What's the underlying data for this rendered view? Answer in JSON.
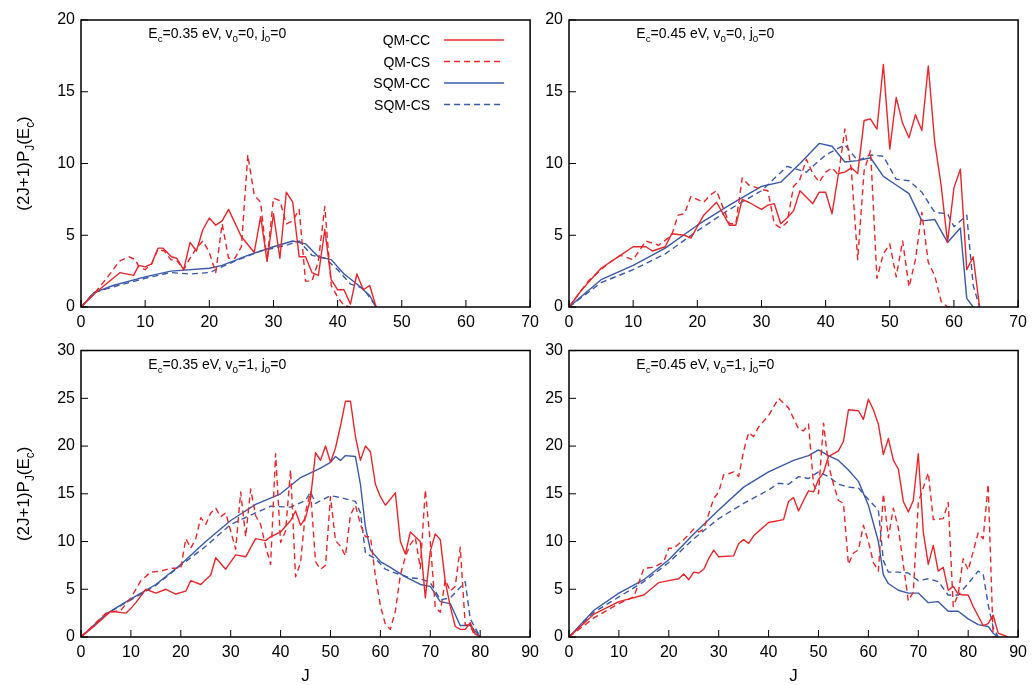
{
  "chart_data": [
    {
      "type": "line",
      "annotations": [
        "E$_{c}$=0.35 eV, v$_{0}$=0, j$_{0}$=0"
      ],
      "ylabel": "(2J+1)P$_{J}$(E$_{c}$)",
      "xlim": [
        0,
        70
      ],
      "xticks": [
        0,
        10,
        20,
        30,
        40,
        50,
        60,
        70
      ],
      "ylim": [
        0,
        20
      ],
      "yticks": [
        0,
        5,
        10,
        15,
        20
      ],
      "legend": "top right",
      "series": [
        {
          "name": "QM-CC",
          "color": "#e8262b",
          "line_style": "solid",
          "x": [
            0,
            2.4,
            6.1,
            8.2,
            9,
            10,
            11,
            12,
            12.8,
            14.1,
            14.9,
            16,
            17,
            18,
            19,
            20,
            21,
            22,
            23,
            25,
            27,
            28,
            29,
            30,
            31,
            32,
            33,
            34,
            35,
            36,
            37,
            38,
            39,
            40,
            41,
            42,
            43,
            44,
            45,
            46
          ],
          "values": [
            0,
            1.05,
            2.4,
            2.2,
            2.9,
            2.8,
            3,
            4.1,
            4.1,
            3.5,
            3.4,
            2.6,
            4.5,
            3.9,
            5.4,
            6.2,
            5.7,
            6,
            6.8,
            4.9,
            3.8,
            6.3,
            3.2,
            6.5,
            3.4,
            8,
            7.3,
            3.5,
            3.5,
            2.4,
            2.2,
            5.4,
            1.9,
            1.2,
            1.2,
            0.2,
            2.3,
            1.2,
            1.5,
            0
          ]
        },
        {
          "name": "QM-CS",
          "color": "#e8262b",
          "line_style": "dashed",
          "x": [
            0,
            2,
            4,
            6,
            7.5,
            8.5,
            9,
            10,
            11,
            12,
            13,
            14,
            15,
            16,
            17,
            18,
            19,
            20,
            21,
            22,
            23,
            24,
            25,
            26,
            27,
            28,
            29,
            30,
            31,
            32,
            33,
            34,
            35,
            36,
            37,
            38,
            39,
            40,
            41,
            42
          ],
          "values": [
            0,
            0.9,
            2,
            3.2,
            3.5,
            3.3,
            2.8,
            2.6,
            3,
            4,
            3.9,
            3.3,
            3.2,
            2.6,
            3.4,
            4.1,
            4.6,
            3.8,
            2.4,
            5.8,
            3.4,
            3.4,
            4.2,
            10.6,
            7.8,
            7.3,
            3.2,
            7.6,
            7.4,
            5.8,
            6,
            6.8,
            1.8,
            1.8,
            3.2,
            7,
            1.5,
            0.7,
            0.1,
            0
          ]
        },
        {
          "name": "SQM-CC",
          "color": "#3a5aa8",
          "line_style": "solid",
          "x": [
            0,
            2,
            5,
            10,
            14,
            20,
            22,
            26,
            30,
            33,
            35,
            37,
            39,
            41,
            43,
            45,
            46
          ],
          "values": [
            0,
            1,
            1.5,
            2.1,
            2.5,
            2.7,
            2.9,
            3.6,
            4.2,
            4.6,
            4.4,
            3.5,
            3.3,
            2.3,
            1.6,
            0.8,
            0
          ]
        },
        {
          "name": "SQM-CS",
          "color": "#3a5aa8",
          "line_style": "dashed",
          "x": [
            0,
            2,
            5,
            10,
            14,
            17,
            20,
            24,
            28,
            32,
            34,
            36,
            38,
            40,
            42,
            44,
            46
          ],
          "values": [
            0,
            1,
            1.4,
            2,
            2.4,
            2.3,
            2.4,
            3.2,
            3.9,
            4.3,
            4.6,
            3.6,
            3.4,
            2.6,
            1.6,
            1.3,
            0
          ]
        }
      ]
    },
    {
      "type": "line",
      "annotations": [
        "E$_{c}$=0.45 eV, v$_{0}$=0, j$_{0}$=0"
      ],
      "xlim": [
        0,
        70
      ],
      "xticks": [
        0,
        10,
        20,
        30,
        40,
        50,
        60,
        70
      ],
      "ylim": [
        0,
        20
      ],
      "yticks": [
        0,
        5,
        10,
        15,
        20
      ],
      "series": [
        {
          "color": "#e8262b",
          "line_style": "solid",
          "x": [
            0,
            2,
            5,
            8,
            10,
            12,
            13,
            15,
            16,
            18,
            19,
            21,
            23,
            25,
            26,
            27,
            28,
            30,
            31,
            32,
            33,
            34,
            35,
            36,
            38,
            39,
            40,
            41,
            42,
            43,
            44,
            45,
            46,
            47,
            48,
            49,
            50,
            51,
            52,
            53,
            54,
            55,
            56,
            57,
            58,
            59,
            60,
            61,
            62,
            63,
            64
          ],
          "values": [
            0,
            1.2,
            2.7,
            3.6,
            4.2,
            4.2,
            3.9,
            4.2,
            5.1,
            5,
            4.8,
            6.4,
            7.3,
            5.7,
            5.7,
            7.5,
            7.3,
            6.8,
            7.1,
            7.2,
            5.8,
            6.2,
            6.7,
            8.1,
            7.2,
            8,
            8,
            6.5,
            9.3,
            9.4,
            9.7,
            9.3,
            13,
            13.1,
            12.4,
            16.9,
            11,
            14.6,
            12.8,
            11.8,
            13.4,
            12.3,
            16.8,
            11.5,
            8.5,
            4.5,
            8.3,
            9.6,
            2.6,
            3.5,
            0
          ]
        },
        {
          "color": "#e8262b",
          "line_style": "dashed",
          "x": [
            0,
            3,
            6,
            8,
            10,
            12,
            14,
            16,
            17,
            18,
            19,
            21,
            22,
            23,
            25,
            26,
            27,
            28,
            30,
            31,
            32,
            33,
            34,
            35,
            36,
            37,
            38,
            39,
            40,
            41,
            42,
            43,
            44,
            45,
            46,
            47,
            48,
            49,
            50,
            51,
            52,
            53,
            54,
            55,
            56,
            57,
            58,
            59,
            60
          ],
          "values": [
            0,
            1.8,
            3,
            3.6,
            3.3,
            4.6,
            4.3,
            5,
            6.4,
            6.5,
            7.7,
            7.3,
            7.8,
            8.1,
            5.8,
            5.8,
            9,
            8.5,
            8.2,
            8.1,
            5.8,
            5.5,
            5.9,
            8.4,
            8.9,
            10.3,
            9.3,
            8.7,
            9.4,
            9.7,
            9.2,
            12.4,
            9.6,
            3.3,
            9.5,
            10.9,
            2,
            3.7,
            4.4,
            2.1,
            4.6,
            1.4,
            3.3,
            6.6,
            3.1,
            2.2,
            0.4,
            0,
            0
          ]
        },
        {
          "color": "#3a5aa8",
          "line_style": "solid",
          "x": [
            0,
            5,
            10,
            15,
            20,
            25,
            30,
            33,
            36,
            39,
            41,
            43,
            45,
            47,
            49,
            51,
            53,
            55,
            57,
            59,
            61,
            62,
            63
          ],
          "values": [
            0,
            1.9,
            2.9,
            4.1,
            5.7,
            7.1,
            8.4,
            8.7,
            10,
            11.4,
            11.2,
            10.1,
            10.2,
            10.4,
            9.1,
            8.5,
            7.9,
            6,
            6.1,
            4.5,
            5.5,
            0.6,
            0
          ]
        },
        {
          "color": "#3a5aa8",
          "line_style": "dashed",
          "x": [
            0,
            5,
            10,
            15,
            20,
            25,
            30,
            34,
            37,
            40,
            43,
            45,
            47,
            49,
            51,
            53,
            55,
            57,
            59,
            60,
            62,
            63,
            64
          ],
          "values": [
            0,
            1.7,
            2.6,
            3.7,
            5.3,
            6.8,
            8.1,
            9.8,
            9.4,
            10.6,
            11.3,
            10.2,
            10.6,
            10.5,
            8.9,
            8.8,
            8,
            6.6,
            6.5,
            5.6,
            6.4,
            1.5,
            0
          ]
        }
      ]
    },
    {
      "type": "line",
      "annotations": [
        "E$_{c}$=0.35 eV, v$_{0}$=1, j$_{0}$=0"
      ],
      "xlabel": "J",
      "ylabel": "(2J+1)P$_{J}$(E$_{c}$)",
      "xlim": [
        0,
        90
      ],
      "xticks": [
        0,
        10,
        20,
        30,
        40,
        50,
        60,
        70,
        80,
        90
      ],
      "ylim": [
        0,
        30
      ],
      "yticks": [
        0,
        5,
        10,
        15,
        20,
        25,
        30
      ],
      "series": [
        {
          "color": "#e8262b",
          "line_style": "solid",
          "x": [
            0,
            3,
            6,
            9,
            10,
            11,
            13,
            15,
            17,
            19,
            21,
            22,
            24,
            26,
            27,
            29,
            31,
            33,
            35,
            37,
            38,
            40,
            42,
            43,
            44,
            45,
            46,
            47,
            48,
            49,
            50,
            51,
            52,
            53,
            54,
            55,
            56,
            57,
            58,
            59,
            60,
            61,
            63,
            64,
            65,
            66,
            68,
            69,
            70,
            71,
            72,
            73,
            74,
            75,
            76,
            77,
            78,
            79,
            80
          ],
          "values": [
            0,
            1.3,
            2.7,
            2.5,
            3,
            3.6,
            5,
            4.6,
            5,
            4.5,
            4.8,
            5.9,
            5.5,
            6.5,
            8.3,
            7.1,
            8.6,
            8.4,
            10.3,
            10.1,
            10.5,
            11,
            12.2,
            13.2,
            11.7,
            12.5,
            14.5,
            19.3,
            18.5,
            20,
            18.3,
            19.8,
            22.1,
            24.7,
            24.7,
            21,
            18.5,
            20,
            19.4,
            16,
            14.7,
            13.8,
            15.1,
            10,
            8.7,
            11,
            10,
            4.1,
            9,
            10.8,
            10.2,
            5.8,
            3.2,
            1.1,
            0.8,
            0.8,
            1.5,
            0.3,
            0
          ]
        },
        {
          "color": "#e8262b",
          "line_style": "dashed",
          "x": [
            0,
            5,
            8,
            10,
            12,
            14,
            16,
            18,
            20,
            21,
            22,
            23,
            24,
            25,
            26,
            27,
            28,
            29,
            30,
            31,
            32,
            33,
            34,
            35,
            36,
            37,
            38,
            39,
            40,
            41,
            42,
            43,
            44,
            45,
            46,
            47,
            48,
            49,
            50,
            51,
            52,
            53,
            54,
            55,
            56,
            57,
            58,
            59,
            60,
            61,
            62,
            63,
            64,
            65,
            66,
            67,
            68,
            69,
            70,
            71,
            72,
            73,
            74,
            75,
            76,
            77,
            78,
            79
          ],
          "values": [
            0,
            2.5,
            2.8,
            4.1,
            5.9,
            6.8,
            6.9,
            7.2,
            7.2,
            10.3,
            9.3,
            10.3,
            12.5,
            11.8,
            13,
            13.5,
            12.6,
            13,
            11.1,
            9.2,
            15.2,
            10.5,
            15.5,
            12.7,
            11.8,
            9.5,
            7.6,
            19.2,
            9.9,
            11.1,
            17.5,
            6.3,
            7.8,
            13.1,
            15.2,
            7.9,
            7.1,
            7.5,
            14.7,
            10.1,
            9.5,
            8.5,
            12.8,
            13.8,
            11.8,
            10.5,
            10.5,
            6.4,
            3.3,
            1.3,
            0.8,
            2.7,
            6.5,
            8.4,
            9.7,
            10.4,
            7.2,
            15.4,
            9.9,
            3.1,
            2.6,
            6,
            4.8,
            5.3,
            9.4,
            1.3,
            1.2,
            0
          ]
        },
        {
          "color": "#3a5aa8",
          "line_style": "solid",
          "x": [
            0,
            5,
            10,
            15,
            20,
            25,
            30,
            35,
            40,
            44,
            46,
            48,
            50,
            51,
            52,
            53,
            55,
            56,
            57,
            58,
            60,
            62,
            65,
            68,
            70,
            72,
            74,
            76,
            78,
            80
          ],
          "values": [
            0,
            2.4,
            4,
            5.5,
            7.6,
            10,
            12.2,
            13.9,
            15,
            16.7,
            17.2,
            17.7,
            18.3,
            18.9,
            18.5,
            19,
            18.9,
            16,
            11.5,
            9.1,
            7.9,
            7.3,
            6.3,
            5.5,
            5.3,
            3.7,
            3.5,
            1.2,
            1.2,
            0
          ]
        },
        {
          "color": "#3a5aa8",
          "line_style": "dashed",
          "x": [
            0,
            5,
            10,
            15,
            20,
            25,
            30,
            35,
            38,
            42,
            45,
            46,
            47,
            50,
            52,
            55,
            56,
            57,
            59,
            61,
            63,
            66,
            68,
            70,
            72,
            74,
            76,
            77,
            78,
            80
          ],
          "values": [
            0,
            2.4,
            3.9,
            5.4,
            7.5,
            9.5,
            11.8,
            13,
            13.7,
            13.6,
            14.3,
            15.2,
            14,
            14.8,
            14.6,
            14.2,
            13,
            8.8,
            8.2,
            7.1,
            6.7,
            6.2,
            6.1,
            5.7,
            3.9,
            4.1,
            5.2,
            5.8,
            1.9,
            0
          ]
        }
      ]
    },
    {
      "type": "line",
      "annotations": [
        "E$_{c}$=0.45 eV, v$_{0}$=1, j$_{0}$=0"
      ],
      "xlabel": "J",
      "xlim": [
        0,
        90
      ],
      "xticks": [
        0,
        10,
        20,
        30,
        40,
        50,
        60,
        70,
        80,
        90
      ],
      "ylim": [
        0,
        30
      ],
      "yticks": [
        0,
        5,
        10,
        15,
        20,
        25,
        30
      ],
      "series": [
        {
          "color": "#e8262b",
          "line_style": "solid",
          "x": [
            0,
            5,
            10,
            15,
            18,
            20,
            22,
            23,
            24,
            25,
            26,
            27,
            28,
            29,
            30,
            33,
            34,
            35,
            36,
            37,
            40,
            43,
            44,
            45,
            46,
            47,
            48,
            49,
            50,
            51,
            52,
            54,
            55,
            56,
            58,
            59,
            60,
            61,
            62,
            63,
            64,
            65,
            66,
            67,
            68,
            69,
            70,
            71,
            72,
            73,
            74,
            75,
            76,
            77,
            78,
            79,
            80,
            81,
            82,
            83,
            84,
            85,
            86,
            88
          ],
          "values": [
            0,
            2.4,
            3.7,
            4.4,
            5.7,
            5.9,
            6.1,
            6.6,
            6,
            6.8,
            6.7,
            7.1,
            8.2,
            9.1,
            8.4,
            8.5,
            9.8,
            10.2,
            9.8,
            10.6,
            12,
            12.3,
            14.2,
            14.6,
            13.2,
            14.3,
            15.3,
            15.2,
            16.5,
            17.2,
            18.9,
            19.5,
            20.5,
            23.8,
            23.7,
            22.8,
            24.9,
            23.8,
            22.3,
            19.1,
            20.8,
            18.5,
            17.6,
            14.2,
            13.1,
            14.3,
            19.2,
            11,
            7.6,
            9.6,
            6.9,
            7.3,
            4.9,
            5.3,
            4.5,
            4.4,
            4.4,
            3.2,
            2.2,
            1.2,
            1.4,
            2.3,
            0.4,
            0
          ]
        },
        {
          "color": "#e8262b",
          "line_style": "dashed",
          "x": [
            0,
            5,
            10,
            13,
            15,
            17,
            19,
            20,
            21,
            23,
            25,
            26,
            27,
            29,
            30,
            31,
            32,
            33,
            34,
            35,
            36,
            37,
            38,
            40,
            42,
            44,
            46,
            47,
            48,
            49,
            50,
            51,
            52,
            53,
            54,
            55,
            56,
            57,
            58,
            59,
            60,
            61,
            62,
            63,
            64,
            65,
            66,
            68,
            69,
            70,
            72,
            73,
            75,
            76,
            77,
            78,
            79,
            80,
            82,
            83,
            84,
            85,
            86
          ],
          "values": [
            0,
            2,
            3.5,
            4.2,
            7.2,
            7.3,
            7.9,
            9.3,
            9.3,
            10.2,
            11.3,
            11,
            11.3,
            14.5,
            15.2,
            17,
            17.1,
            17.3,
            16.8,
            19.5,
            21.4,
            21,
            22,
            23.2,
            25,
            24,
            21.8,
            21.6,
            22.3,
            16,
            15,
            22.4,
            18,
            16,
            14.3,
            14,
            7.6,
            8.8,
            9.1,
            11.7,
            10,
            7.8,
            6.9,
            15,
            10.4,
            13.5,
            11.4,
            3.8,
            4.7,
            14.1,
            17.2,
            12.3,
            12.4,
            14.1,
            3.2,
            4.5,
            8.2,
            7,
            10.9,
            10.3,
            16,
            0,
            0
          ]
        },
        {
          "color": "#3a5aa8",
          "line_style": "solid",
          "x": [
            0,
            5,
            10,
            15,
            20,
            25,
            30,
            35,
            40,
            45,
            48,
            50,
            52,
            54,
            56,
            58,
            60,
            62,
            63,
            64,
            66,
            68,
            70,
            72,
            74,
            76,
            78,
            80,
            82,
            84,
            85,
            86
          ],
          "values": [
            0,
            2.8,
            4.6,
            6,
            8.1,
            10.8,
            13.3,
            15.7,
            17.3,
            18.5,
            19,
            19.6,
            19,
            18.5,
            17.5,
            16.3,
            13.8,
            10,
            6.5,
            5.6,
            4.9,
            4.6,
            4.6,
            3.6,
            3.7,
            2.7,
            2.7,
            1.9,
            1.3,
            1.1,
            0.4,
            0
          ]
        },
        {
          "color": "#3a5aa8",
          "line_style": "dashed",
          "x": [
            0,
            5,
            10,
            15,
            20,
            25,
            30,
            35,
            40,
            42,
            44,
            46,
            48,
            50,
            52,
            54,
            56,
            58,
            60,
            62,
            63,
            64,
            66,
            68,
            70,
            72,
            74,
            76,
            78,
            80,
            82,
            83,
            84,
            85,
            86
          ],
          "values": [
            0,
            2.6,
            4.2,
            5.8,
            7.8,
            10.3,
            12.4,
            14,
            15.4,
            16.1,
            16,
            16.8,
            16.6,
            17.3,
            16.8,
            16,
            15.7,
            15.6,
            14.4,
            13.3,
            8,
            6.8,
            6.8,
            6.7,
            5.9,
            6.1,
            5.8,
            4.4,
            4.4,
            5.6,
            6.9,
            6.6,
            3.4,
            1,
            0
          ]
        }
      ]
    }
  ]
}
